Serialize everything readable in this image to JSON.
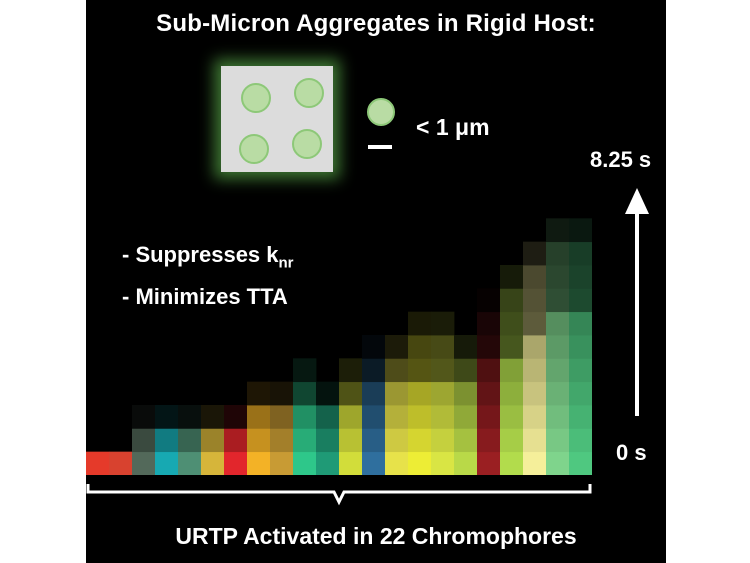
{
  "title": "Sub-Micron Aggregates in Rigid Host:",
  "size_label": "< 1 μm",
  "bullets": [
    {
      "prefix": "- Suppresses k",
      "sub": "nr"
    },
    {
      "prefix": "- Minimizes TTA",
      "sub": ""
    }
  ],
  "time_top": "8.25 s",
  "time_bottom": "0 s",
  "footer": "URTP Activated in 22 Chromophores",
  "colors": {
    "background": "#000000",
    "host": "#dcdcdc",
    "aggregate": "#b9dca4",
    "glow": "#6ed25a"
  },
  "heatmap": {
    "num_columns": 22,
    "num_rows": 12,
    "columns": [
      {
        "color": "#e53a2a",
        "height": 0.09,
        "fade": 0.55
      },
      {
        "color": "#d8422f",
        "height": 0.1,
        "fade": 0.5
      },
      {
        "color": "#53695a",
        "height": 0.22,
        "fade": 0.6
      },
      {
        "color": "#17a9b2",
        "height": 0.24,
        "fade": 0.55
      },
      {
        "color": "#4e8f74",
        "height": 0.27,
        "fade": 0.6
      },
      {
        "color": "#d6b53a",
        "height": 0.27,
        "fade": 0.55
      },
      {
        "color": "#e2262c",
        "height": 0.28,
        "fade": 0.5
      },
      {
        "color": "#f3b226",
        "height": 0.34,
        "fade": 0.55
      },
      {
        "color": "#c89b34",
        "height": 0.3,
        "fade": 0.55
      },
      {
        "color": "#2ec78a",
        "height": 0.4,
        "fade": 0.55
      },
      {
        "color": "#1f9a76",
        "height": 0.36,
        "fade": 0.55
      },
      {
        "color": "#d2dd3a",
        "height": 0.42,
        "fade": 0.5
      },
      {
        "color": "#2f6f9e",
        "height": 0.5,
        "fade": 0.75
      },
      {
        "color": "#e7e24a",
        "height": 0.5,
        "fade": 0.55
      },
      {
        "color": "#eded35",
        "height": 0.55,
        "fade": 0.6
      },
      {
        "color": "#d9e544",
        "height": 0.62,
        "fade": 0.55
      },
      {
        "color": "#b9d948",
        "height": 0.52,
        "fade": 0.55
      },
      {
        "color": "#9a1f22",
        "height": 0.66,
        "fade": 0.85
      },
      {
        "color": "#b2dc4c",
        "height": 0.74,
        "fade": 0.55
      },
      {
        "color": "#f5ef9a",
        "height": 0.82,
        "fade": 0.55
      },
      {
        "color": "#7fd48c",
        "height": 0.88,
        "fade": 0.55
      },
      {
        "color": "#4fc880",
        "height": 0.94,
        "fade": 0.55
      }
    ]
  }
}
